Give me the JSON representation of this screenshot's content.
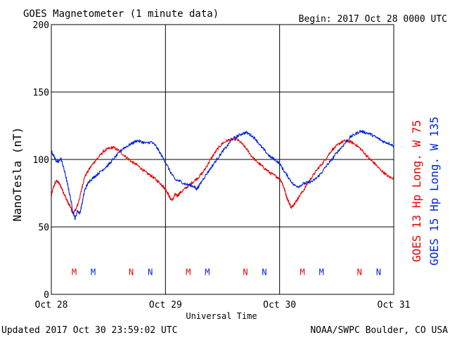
{
  "header": {
    "title": "GOES Magnetometer (1 minute data)",
    "begin": "Begin:  2017 Oct 28 0000 UTC"
  },
  "footer": {
    "updated": "Updated 2017 Oct 30 23:59:02 UTC",
    "credit": "NOAA/SWPC Boulder, CO USA"
  },
  "colors": {
    "goes13": "#e60000",
    "goes15": "#0022dd",
    "axis": "#000000"
  },
  "chart_data": {
    "type": "line",
    "title": "GOES Magnetometer (1 minute data)",
    "xlabel": "Universal Time",
    "ylabel": "NanoTesla (nT)",
    "ylim": [
      0,
      200
    ],
    "xlim": [
      0,
      72
    ],
    "x_units": "hours since 2017 Oct 28 0000 UTC",
    "grid": true,
    "yticks": [
      0,
      50,
      100,
      150,
      200
    ],
    "ytick_labels": [
      "0",
      "50",
      "100",
      "150",
      "200"
    ],
    "xticks": [
      {
        "x": 0,
        "label": "Oct 28"
      },
      {
        "x": 24,
        "label": "Oct 29"
      },
      {
        "x": 48,
        "label": "Oct 30"
      },
      {
        "x": 72,
        "label": "Oct 31"
      }
    ],
    "legend_labels": [
      "GOES 13 Hp  Long. W 75",
      "GOES 15 Hp  Long. W 135"
    ],
    "series": [
      {
        "name": "GOES 13 Hp  Long. W 75",
        "color": "#e60000",
        "points": [
          [
            0,
            73
          ],
          [
            0.5,
            80
          ],
          [
            1,
            84
          ],
          [
            1.5,
            83
          ],
          [
            2,
            80
          ],
          [
            2.5,
            76
          ],
          [
            3,
            72
          ],
          [
            3.5,
            68
          ],
          [
            4,
            65
          ],
          [
            4.5,
            60
          ],
          [
            5,
            62
          ],
          [
            5.5,
            66
          ],
          [
            6,
            72
          ],
          [
            6.5,
            80
          ],
          [
            7,
            87
          ],
          [
            8,
            93
          ],
          [
            9,
            98
          ],
          [
            10,
            102
          ],
          [
            11,
            106
          ],
          [
            12,
            108
          ],
          [
            13,
            109
          ],
          [
            14,
            107
          ],
          [
            15,
            104
          ],
          [
            16,
            101
          ],
          [
            17,
            98
          ],
          [
            18,
            96
          ],
          [
            19,
            93
          ],
          [
            20,
            90
          ],
          [
            21,
            88
          ],
          [
            22,
            85
          ],
          [
            23,
            82
          ],
          [
            23.5,
            80
          ],
          [
            24,
            78
          ],
          [
            24.5,
            75
          ],
          [
            25,
            71
          ],
          [
            25.5,
            70
          ],
          [
            26,
            74
          ],
          [
            26.5,
            73
          ],
          [
            27,
            75
          ],
          [
            28,
            78
          ],
          [
            29,
            81
          ],
          [
            30,
            84
          ],
          [
            31,
            87
          ],
          [
            32,
            91
          ],
          [
            33,
            97
          ],
          [
            34,
            103
          ],
          [
            35,
            108
          ],
          [
            36,
            112
          ],
          [
            37,
            114
          ],
          [
            38,
            115
          ],
          [
            39,
            115
          ],
          [
            40,
            112
          ],
          [
            41,
            108
          ],
          [
            42,
            103
          ],
          [
            43,
            99
          ],
          [
            44,
            96
          ],
          [
            45,
            93
          ],
          [
            46,
            90
          ],
          [
            47,
            88
          ],
          [
            48,
            86
          ],
          [
            48.5,
            83
          ],
          [
            49,
            78
          ],
          [
            49.5,
            72
          ],
          [
            50,
            68
          ],
          [
            50.5,
            64
          ],
          [
            51,
            67
          ],
          [
            51.5,
            69
          ],
          [
            52,
            72
          ],
          [
            53,
            77
          ],
          [
            54,
            83
          ],
          [
            55,
            88
          ],
          [
            56,
            93
          ],
          [
            57,
            97
          ],
          [
            58,
            102
          ],
          [
            59,
            107
          ],
          [
            60,
            110
          ],
          [
            61,
            113
          ],
          [
            62,
            114
          ],
          [
            63,
            113
          ],
          [
            64,
            111
          ],
          [
            65,
            108
          ],
          [
            66,
            104
          ],
          [
            67,
            100
          ],
          [
            68,
            97
          ],
          [
            69,
            93
          ],
          [
            70,
            90
          ],
          [
            71,
            87
          ],
          [
            72,
            86
          ]
        ]
      },
      {
        "name": "GOES 15 Hp  Long. W 135",
        "color": "#0022dd",
        "points": [
          [
            0,
            106
          ],
          [
            0.5,
            103
          ],
          [
            1,
            99
          ],
          [
            1.5,
            98
          ],
          [
            2,
            101
          ],
          [
            2.5,
            95
          ],
          [
            3,
            88
          ],
          [
            3.5,
            80
          ],
          [
            4,
            72
          ],
          [
            4.5,
            62
          ],
          [
            5,
            56
          ],
          [
            5.5,
            62
          ],
          [
            6,
            60
          ],
          [
            6.5,
            68
          ],
          [
            7,
            77
          ],
          [
            7.5,
            81
          ],
          [
            8,
            84
          ],
          [
            9,
            87
          ],
          [
            10,
            90
          ],
          [
            11,
            93
          ],
          [
            12,
            96
          ],
          [
            13,
            100
          ],
          [
            14,
            104
          ],
          [
            15,
            108
          ],
          [
            16,
            110
          ],
          [
            17,
            112
          ],
          [
            18,
            114
          ],
          [
            19,
            113
          ],
          [
            20,
            112
          ],
          [
            21,
            113
          ],
          [
            22,
            110
          ],
          [
            23,
            104
          ],
          [
            24,
            98
          ],
          [
            25,
            91
          ],
          [
            26,
            85
          ],
          [
            27,
            84
          ],
          [
            28,
            82
          ],
          [
            29,
            81
          ],
          [
            30,
            80
          ],
          [
            30.5,
            78
          ],
          [
            31,
            80
          ],
          [
            32,
            86
          ],
          [
            33,
            91
          ],
          [
            34,
            96
          ],
          [
            35,
            101
          ],
          [
            36,
            106
          ],
          [
            37,
            110
          ],
          [
            38,
            115
          ],
          [
            39,
            117
          ],
          [
            40,
            119
          ],
          [
            41,
            120
          ],
          [
            42,
            118
          ],
          [
            43,
            115
          ],
          [
            44,
            110
          ],
          [
            45,
            106
          ],
          [
            46,
            102
          ],
          [
            47,
            100
          ],
          [
            48,
            97
          ],
          [
            49,
            91
          ],
          [
            50,
            86
          ],
          [
            51,
            81
          ],
          [
            52,
            80
          ],
          [
            53,
            82
          ],
          [
            54,
            83
          ],
          [
            55,
            84
          ],
          [
            56,
            87
          ],
          [
            57,
            91
          ],
          [
            58,
            96
          ],
          [
            59,
            100
          ],
          [
            60,
            105
          ],
          [
            61,
            109
          ],
          [
            62,
            113
          ],
          [
            63,
            117
          ],
          [
            64,
            119
          ],
          [
            65,
            121
          ],
          [
            66,
            120
          ],
          [
            67,
            119
          ],
          [
            68,
            117
          ],
          [
            69,
            115
          ],
          [
            70,
            113
          ],
          [
            71,
            112
          ],
          [
            72,
            110
          ]
        ]
      }
    ],
    "markers": [
      {
        "label": "M",
        "x": 4.8,
        "color": "#e60000"
      },
      {
        "label": "M",
        "x": 8.8,
        "color": "#0022dd"
      },
      {
        "label": "N",
        "x": 16.8,
        "color": "#e60000"
      },
      {
        "label": "N",
        "x": 20.8,
        "color": "#0022dd"
      },
      {
        "label": "M",
        "x": 28.8,
        "color": "#e60000"
      },
      {
        "label": "M",
        "x": 32.8,
        "color": "#0022dd"
      },
      {
        "label": "N",
        "x": 40.8,
        "color": "#e60000"
      },
      {
        "label": "N",
        "x": 44.8,
        "color": "#0022dd"
      },
      {
        "label": "M",
        "x": 52.8,
        "color": "#e60000"
      },
      {
        "label": "M",
        "x": 56.8,
        "color": "#0022dd"
      },
      {
        "label": "N",
        "x": 64.8,
        "color": "#e60000"
      },
      {
        "label": "N",
        "x": 68.8,
        "color": "#0022dd"
      }
    ],
    "marker_level": 17
  }
}
